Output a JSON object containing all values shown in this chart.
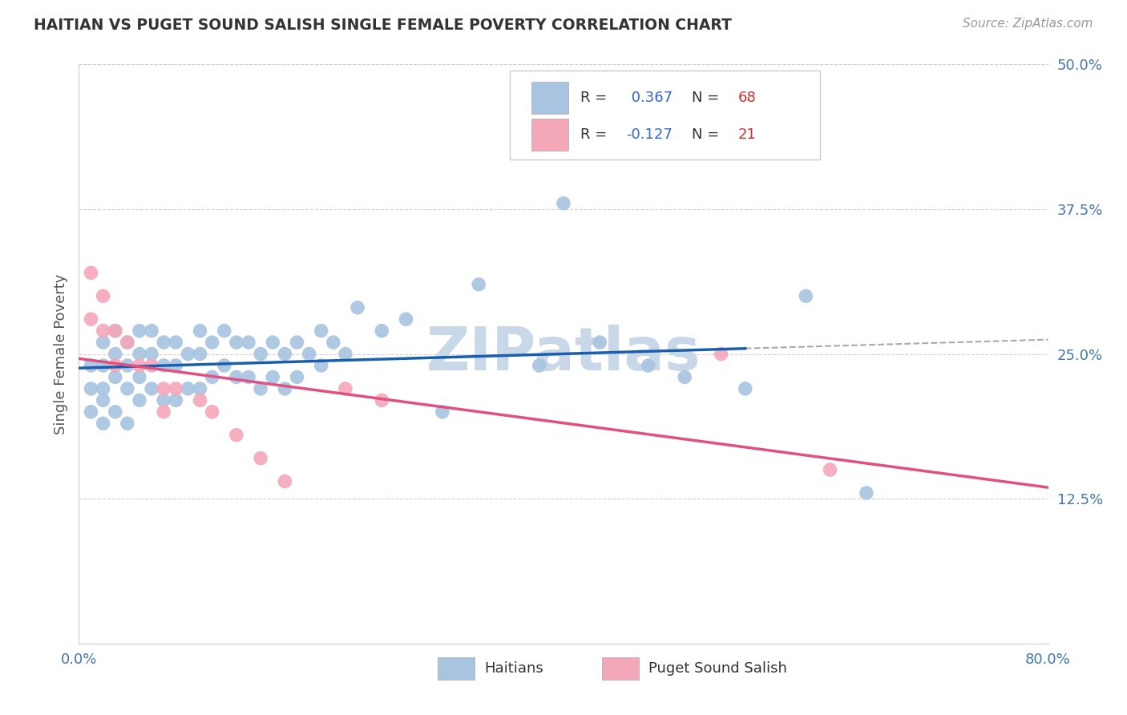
{
  "title": "HAITIAN VS PUGET SOUND SALISH SINGLE FEMALE POVERTY CORRELATION CHART",
  "source": "Source: ZipAtlas.com",
  "ylabel": "Single Female Poverty",
  "xlim": [
    0.0,
    0.8
  ],
  "ylim": [
    0.0,
    0.5
  ],
  "ytick_right": [
    0.125,
    0.25,
    0.375,
    0.5
  ],
  "ytick_right_labels": [
    "12.5%",
    "25.0%",
    "37.5%",
    "50.0%"
  ],
  "blue_color": "#a8c4e0",
  "pink_color": "#f4a7b9",
  "blue_line_color": "#1a5fad",
  "pink_line_color": "#e05080",
  "dashed_line_color": "#aaaaaa",
  "watermark": "ZIPatlas",
  "watermark_color": "#c8d8e8",
  "background_color": "#ffffff",
  "legend_r1": " 0.367",
  "legend_n1": "68",
  "legend_r2": "-0.127",
  "legend_n2": "21",
  "haitians_x": [
    0.01,
    0.01,
    0.01,
    0.02,
    0.02,
    0.02,
    0.02,
    0.02,
    0.03,
    0.03,
    0.03,
    0.03,
    0.04,
    0.04,
    0.04,
    0.04,
    0.05,
    0.05,
    0.05,
    0.05,
    0.06,
    0.06,
    0.06,
    0.07,
    0.07,
    0.07,
    0.08,
    0.08,
    0.08,
    0.09,
    0.09,
    0.1,
    0.1,
    0.1,
    0.11,
    0.11,
    0.12,
    0.12,
    0.13,
    0.13,
    0.14,
    0.14,
    0.15,
    0.15,
    0.16,
    0.16,
    0.17,
    0.17,
    0.18,
    0.18,
    0.19,
    0.2,
    0.2,
    0.21,
    0.22,
    0.23,
    0.25,
    0.27,
    0.3,
    0.33,
    0.38,
    0.4,
    0.43,
    0.47,
    0.5,
    0.55,
    0.6,
    0.65
  ],
  "haitians_y": [
    0.24,
    0.22,
    0.2,
    0.26,
    0.24,
    0.22,
    0.21,
    0.19,
    0.27,
    0.25,
    0.23,
    0.2,
    0.26,
    0.24,
    0.22,
    0.19,
    0.27,
    0.25,
    0.23,
    0.21,
    0.27,
    0.25,
    0.22,
    0.26,
    0.24,
    0.21,
    0.26,
    0.24,
    0.21,
    0.25,
    0.22,
    0.27,
    0.25,
    0.22,
    0.26,
    0.23,
    0.27,
    0.24,
    0.26,
    0.23,
    0.26,
    0.23,
    0.25,
    0.22,
    0.26,
    0.23,
    0.25,
    0.22,
    0.26,
    0.23,
    0.25,
    0.27,
    0.24,
    0.26,
    0.25,
    0.29,
    0.27,
    0.28,
    0.2,
    0.31,
    0.24,
    0.38,
    0.26,
    0.24,
    0.23,
    0.22,
    0.3,
    0.13
  ],
  "salish_x": [
    0.01,
    0.01,
    0.02,
    0.02,
    0.03,
    0.03,
    0.04,
    0.05,
    0.06,
    0.07,
    0.07,
    0.08,
    0.1,
    0.11,
    0.13,
    0.15,
    0.17,
    0.22,
    0.25,
    0.53,
    0.62
  ],
  "salish_y": [
    0.32,
    0.28,
    0.3,
    0.27,
    0.27,
    0.24,
    0.26,
    0.24,
    0.24,
    0.22,
    0.2,
    0.22,
    0.21,
    0.2,
    0.18,
    0.16,
    0.14,
    0.22,
    0.21,
    0.25,
    0.15
  ]
}
